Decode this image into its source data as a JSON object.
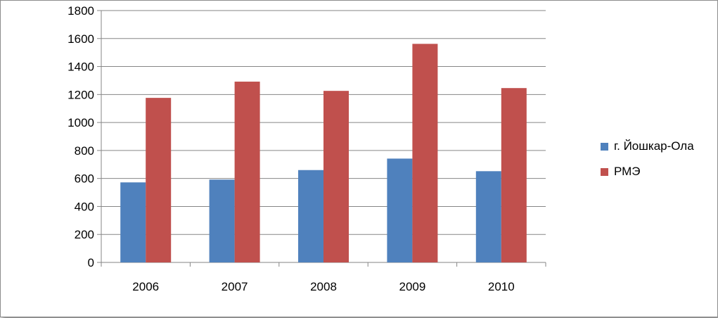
{
  "chart_data": {
    "type": "bar",
    "categories": [
      "2006",
      "2007",
      "2008",
      "2009",
      "2010"
    ],
    "series": [
      {
        "name": "г. Йошкар-Ола",
        "color": "#4f81bd",
        "values": [
          572,
          592,
          660,
          742,
          652
        ]
      },
      {
        "name": "РМЭ",
        "color": "#c0504d",
        "values": [
          1176,
          1292,
          1226,
          1562,
          1246
        ]
      }
    ],
    "ylim": [
      0,
      1800
    ],
    "yticks": [
      "0",
      "200",
      "400",
      "600",
      "800",
      "1000",
      "1200",
      "1400",
      "1600",
      "1800"
    ],
    "grid": true,
    "legend_position": "right",
    "title": "",
    "xlabel": "",
    "ylabel": ""
  }
}
